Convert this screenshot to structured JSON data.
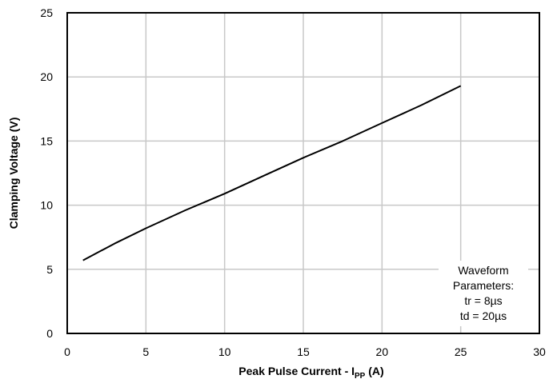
{
  "chart_data": {
    "type": "line",
    "title": "",
    "xlabel": {
      "main": "Peak Pulse Current - I",
      "sub": "PP",
      "unit": " (A)"
    },
    "ylabel": "Clamping Voltage (V)",
    "xlim": [
      0,
      30
    ],
    "ylim": [
      0,
      25
    ],
    "x_ticks": [
      "0",
      "5",
      "10",
      "15",
      "20",
      "25",
      "30"
    ],
    "y_ticks": [
      "0",
      "5",
      "10",
      "15",
      "20",
      "25"
    ],
    "grid": true,
    "series": [
      {
        "color": "#000000",
        "x": [
          1,
          3,
          5,
          7.5,
          10,
          12.5,
          15,
          17.5,
          20,
          22.5,
          25
        ],
        "y": [
          5.7,
          7.0,
          8.2,
          9.6,
          10.9,
          12.3,
          13.7,
          15.0,
          16.4,
          17.8,
          19.3
        ]
      }
    ],
    "annotation": {
      "lines": [
        "Waveform",
        "Parameters:",
        "tr = 8µs",
        "td = 20µs"
      ]
    }
  }
}
